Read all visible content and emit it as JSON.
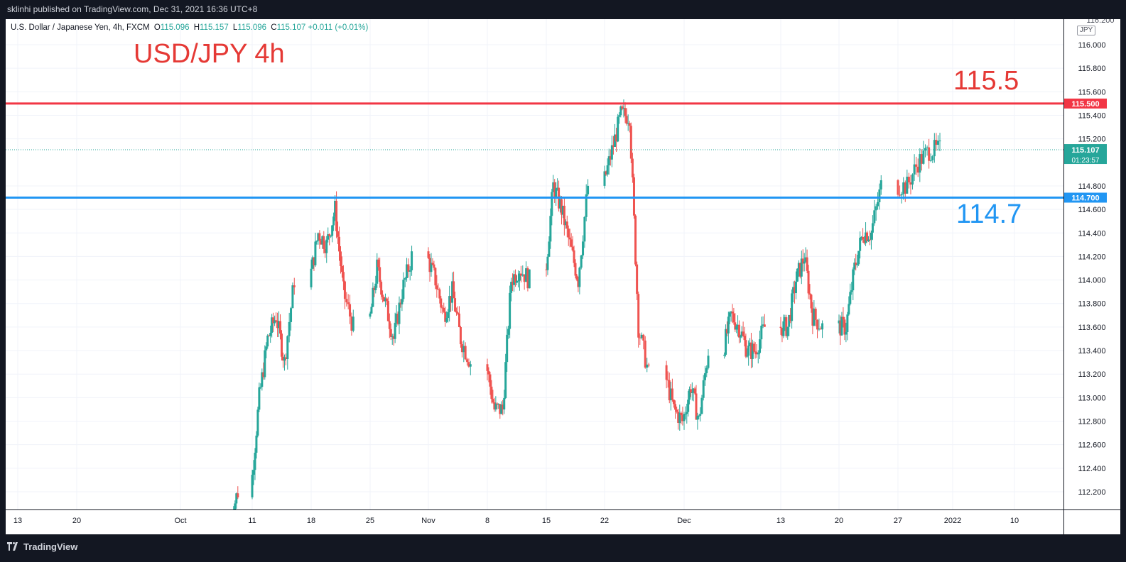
{
  "header": {
    "published_text": "sklinhi published on TradingView.com, Dec 31, 2021 16:36 UTC+8"
  },
  "legend": {
    "symbol": "U.S. Dollar / Japanese Yen, 4h, FXCM",
    "open_label": "O",
    "open": "115.096",
    "high_label": "H",
    "high": "115.157",
    "low_label": "L",
    "low": "115.096",
    "close_label": "C",
    "close": "115.107",
    "change": "+0.011 (+0.01%)"
  },
  "annotations": {
    "title": "USD/JPY 4h",
    "resistance_text": "115.5",
    "support_text": "114.7"
  },
  "price_axis": {
    "unit": "JPY",
    "top_label": "116.200",
    "ticks": [
      "116.000",
      "115.800",
      "115.600",
      "115.400",
      "115.200",
      "114.800",
      "114.600",
      "114.400",
      "114.200",
      "114.000",
      "113.800",
      "113.600",
      "113.400",
      "113.200",
      "113.000",
      "112.800",
      "112.600",
      "112.400",
      "112.200"
    ],
    "resistance_tag": "115.500",
    "support_tag": "114.700",
    "last_price_tag": "115.107",
    "countdown_tag": "01:23:57"
  },
  "time_axis": {
    "ticks": [
      "13",
      "20",
      "Oct",
      "11",
      "18",
      "25",
      "Nov",
      "8",
      "15",
      "22",
      "Dec",
      "13",
      "20",
      "27",
      "2022",
      "10"
    ]
  },
  "colors": {
    "up": "#26a69a",
    "down": "#ef5350",
    "resistance": "#f23645",
    "support": "#2196f3",
    "last_price": "#26a69a"
  },
  "chart_data": {
    "type": "candlestick",
    "resistance_level": 115.5,
    "support_level": 114.7,
    "last_price": 115.107,
    "ylim": [
      112.0,
      116.75
    ],
    "anchors": [
      [
        "Oct 8",
        111.95
      ],
      [
        "Oct 11",
        112.2
      ],
      [
        "Oct 12",
        113.0
      ],
      [
        "Oct 13",
        113.5
      ],
      [
        "Oct 14",
        113.7
      ],
      [
        "Oct 15",
        113.3
      ],
      [
        "Oct 18",
        114.0
      ],
      [
        "Oct 19",
        114.4
      ],
      [
        "Oct 20",
        114.3
      ],
      [
        "Oct 21",
        114.6
      ],
      [
        "Oct 22",
        113.9
      ],
      [
        "Oct 25",
        113.6
      ],
      [
        "Oct 26",
        114.1
      ],
      [
        "Oct 27",
        113.8
      ],
      [
        "Oct 28",
        113.5
      ],
      [
        "Oct 29",
        113.9
      ],
      [
        "Nov 1",
        114.2
      ],
      [
        "Nov 2",
        114.0
      ],
      [
        "Nov 3",
        113.7
      ],
      [
        "Nov 4",
        113.9
      ],
      [
        "Nov 5",
        113.5
      ],
      [
        "Nov 8",
        113.3
      ],
      [
        "Nov 9",
        112.9
      ],
      [
        "Nov 10",
        112.9
      ],
      [
        "Nov 11",
        114.0
      ],
      [
        "Nov 12",
        114.1
      ],
      [
        "Nov 15",
        114.0
      ],
      [
        "Nov 16",
        114.8
      ],
      [
        "Nov 17",
        114.6
      ],
      [
        "Nov 18",
        114.3
      ],
      [
        "Nov 19",
        114.0
      ],
      [
        "Nov 22",
        114.8
      ],
      [
        "Nov 23",
        115.1
      ],
      [
        "Nov 24",
        115.4
      ],
      [
        "Nov 25",
        115.4
      ],
      [
        "Nov 26",
        113.6
      ],
      [
        "Nov 29",
        113.2
      ],
      [
        "Nov 30",
        112.9
      ],
      [
        "Dec 1",
        112.8
      ],
      [
        "Dec 2",
        113.1
      ],
      [
        "Dec 3",
        112.8
      ],
      [
        "Dec 6",
        113.4
      ],
      [
        "Dec 7",
        113.7
      ],
      [
        "Dec 8",
        113.6
      ],
      [
        "Dec 9",
        113.4
      ],
      [
        "Dec 10",
        113.4
      ],
      [
        "Dec 13",
        113.6
      ],
      [
        "Dec 14",
        113.6
      ],
      [
        "Dec 15",
        114.0
      ],
      [
        "Dec 16",
        114.2
      ],
      [
        "Dec 17",
        113.7
      ],
      [
        "Dec 20",
        113.6
      ],
      [
        "Dec 21",
        113.6
      ],
      [
        "Dec 22",
        114.1
      ],
      [
        "Dec 23",
        114.4
      ],
      [
        "Dec 24",
        114.4
      ],
      [
        "Dec 27",
        114.8
      ],
      [
        "Dec 28",
        114.8
      ],
      [
        "Dec 29",
        115.0
      ],
      [
        "Dec 30",
        115.1
      ],
      [
        "Dec 31",
        115.107
      ]
    ]
  }
}
